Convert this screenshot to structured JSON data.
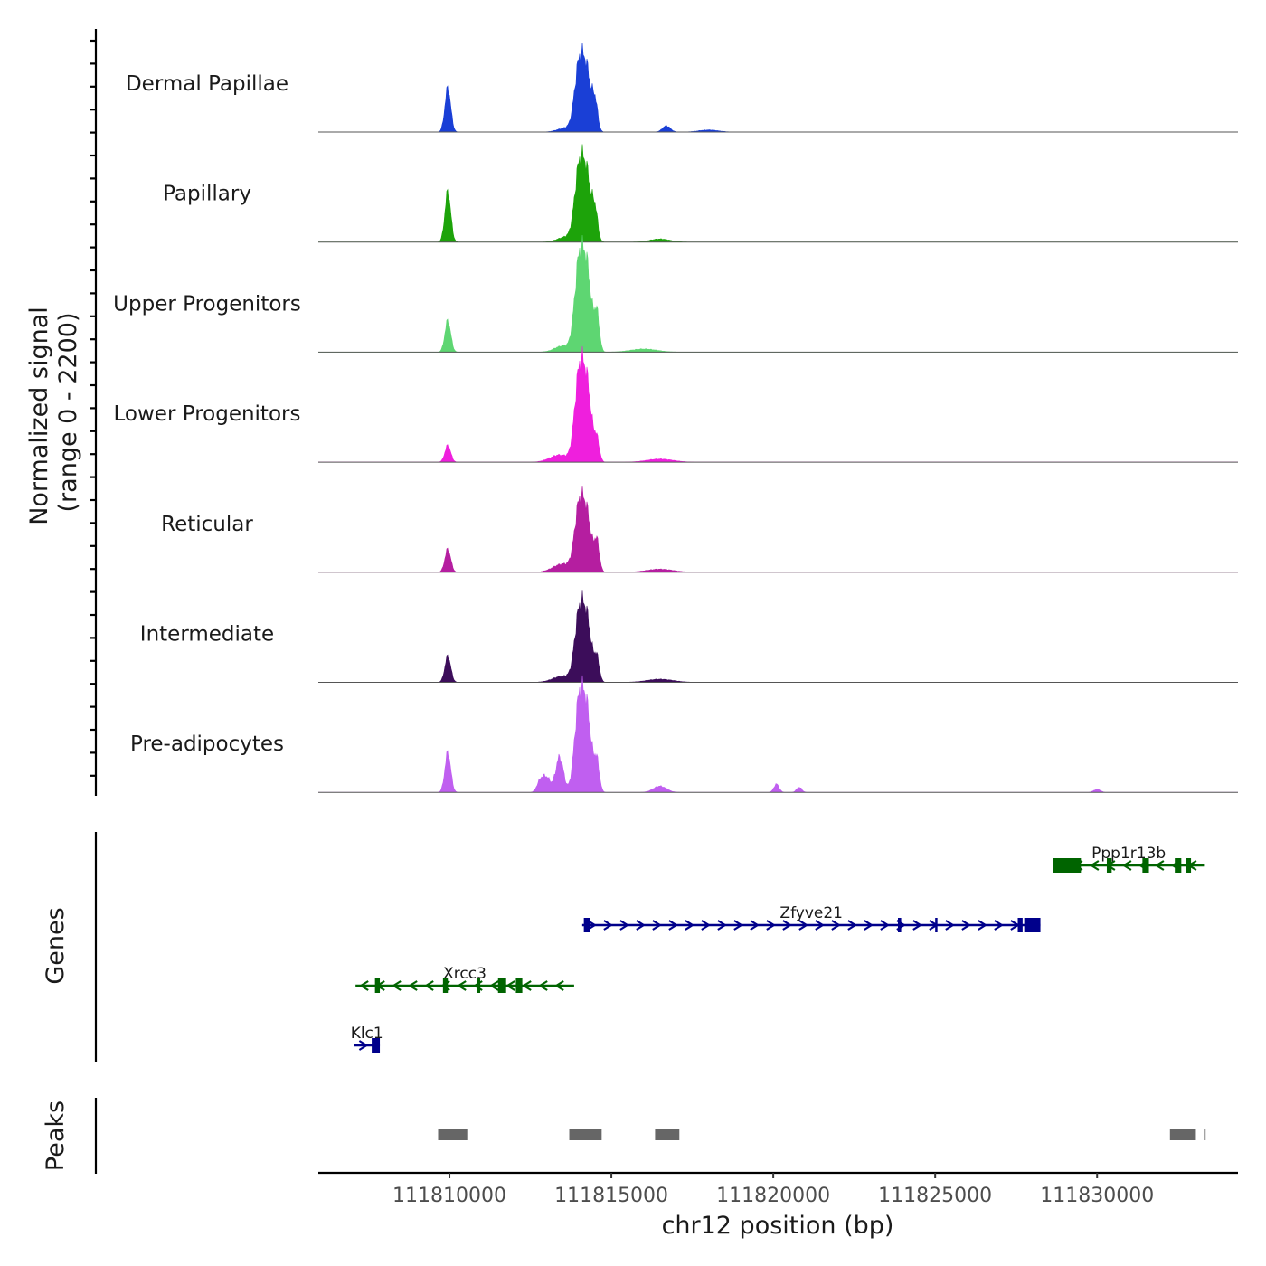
{
  "chart_data": {
    "type": "area",
    "chromosome": "chr12",
    "x_range": [
      111805950,
      111834350
    ],
    "xlabel": "chr12 position (bp)",
    "x_ticks": [
      "111810000",
      "111815000",
      "111820000",
      "111825000",
      "111830000"
    ],
    "x_tick_values": [
      111810000,
      111815000,
      111820000,
      111825000,
      111830000
    ],
    "signal_axis": {
      "label_line1": "Normalized signal",
      "label_line2": "(range 0 - 2200)",
      "ylim": [
        0,
        2200
      ]
    },
    "coverage_tracks": [
      {
        "name": "Dermal Papillae",
        "color": "#1a3fd6",
        "peaks": [
          [
            111809950,
            0.42,
            90
          ],
          [
            111814000,
            0.6,
            140
          ],
          [
            111814250,
            0.52,
            140
          ],
          [
            111814500,
            0.25,
            80
          ],
          [
            111816700,
            0.06,
            120
          ],
          [
            111813600,
            0.04,
            250
          ],
          [
            111818000,
            0.02,
            300
          ]
        ]
      },
      {
        "name": "Papillary",
        "color": "#1da30a",
        "peaks": [
          [
            111809950,
            0.48,
            90
          ],
          [
            111814000,
            0.65,
            140
          ],
          [
            111814250,
            0.58,
            140
          ],
          [
            111814500,
            0.26,
            80
          ],
          [
            111813600,
            0.05,
            250
          ],
          [
            111816500,
            0.03,
            300
          ]
        ]
      },
      {
        "name": "Upper Progenitors",
        "color": "#5ed672",
        "peaks": [
          [
            111809950,
            0.3,
            90
          ],
          [
            111814000,
            0.8,
            140
          ],
          [
            111814250,
            0.72,
            140
          ],
          [
            111814550,
            0.35,
            80
          ],
          [
            111813500,
            0.06,
            250
          ],
          [
            111816000,
            0.03,
            400
          ]
        ]
      },
      {
        "name": "Lower Progenitors",
        "color": "#ef1fdd",
        "peaks": [
          [
            111809950,
            0.16,
            90
          ],
          [
            111814000,
            0.78,
            140
          ],
          [
            111814250,
            0.68,
            140
          ],
          [
            111814550,
            0.2,
            80
          ],
          [
            111813400,
            0.07,
            300
          ],
          [
            111816500,
            0.03,
            400
          ]
        ]
      },
      {
        "name": "Reticular",
        "color": "#b51ea0",
        "peaks": [
          [
            111809950,
            0.22,
            90
          ],
          [
            111814000,
            0.58,
            140
          ],
          [
            111814250,
            0.5,
            140
          ],
          [
            111814550,
            0.28,
            80
          ],
          [
            111813500,
            0.08,
            300
          ],
          [
            111816500,
            0.03,
            400
          ]
        ]
      },
      {
        "name": "Intermediate",
        "color": "#3c0d5a",
        "peaks": [
          [
            111809950,
            0.25,
            90
          ],
          [
            111814000,
            0.6,
            140
          ],
          [
            111814250,
            0.55,
            140
          ],
          [
            111814550,
            0.22,
            80
          ],
          [
            111813500,
            0.06,
            300
          ],
          [
            111816500,
            0.03,
            400
          ]
        ]
      },
      {
        "name": "Pre-adipocytes",
        "color": "#c05ff0",
        "peaks": [
          [
            111809950,
            0.38,
            90
          ],
          [
            111814000,
            0.82,
            140
          ],
          [
            111814250,
            0.7,
            140
          ],
          [
            111814550,
            0.28,
            80
          ],
          [
            111813400,
            0.34,
            120
          ],
          [
            111813000,
            0.14,
            120
          ],
          [
            111812800,
            0.1,
            100
          ],
          [
            111816500,
            0.06,
            200
          ],
          [
            111820100,
            0.08,
            80
          ],
          [
            111820800,
            0.05,
            80
          ],
          [
            111830000,
            0.03,
            100
          ]
        ]
      }
    ],
    "genes_track": {
      "label": "Genes",
      "genes": [
        {
          "name": "Ppp1r13b",
          "strand": "-",
          "color": "#006400",
          "start": 111828650,
          "end": 111833300,
          "row": 0,
          "exons": [
            [
              111828650,
              111829500
            ],
            [
              111830300,
              111830450
            ],
            [
              111831400,
              111831600
            ],
            [
              111832400,
              111832600
            ],
            [
              111832750,
              111832900
            ]
          ]
        },
        {
          "name": "Zfyve21",
          "strand": "+",
          "color": "#00008b",
          "start": 111814100,
          "end": 111828250,
          "row": 1,
          "exons": [
            [
              111814150,
              111814350
            ],
            [
              111823850,
              111823950
            ],
            [
              111825000,
              111825050
            ],
            [
              111827550,
              111827700
            ],
            [
              111827750,
              111828250
            ]
          ]
        },
        {
          "name": "Xrcc3",
          "strand": "-",
          "color": "#006400",
          "start": 111807100,
          "end": 111813850,
          "row": 2,
          "exons": [
            [
              111807700,
              111807850
            ],
            [
              111809800,
              111809950
            ],
            [
              111810850,
              111810950
            ],
            [
              111811500,
              111811750
            ],
            [
              111812050,
              111812250
            ]
          ]
        },
        {
          "name": "Klc1",
          "strand": "+",
          "color": "#00008b",
          "start": 111807050,
          "end": 111807850,
          "row": 3,
          "exons": [
            [
              111807600,
              111807850
            ]
          ]
        }
      ]
    },
    "peaks_track": {
      "label": "Peaks",
      "color": "#666666",
      "regions": [
        [
          111809650,
          111810550
        ],
        [
          111813700,
          111814700
        ],
        [
          111816350,
          111817100
        ],
        [
          111832250,
          111833050
        ],
        [
          111833300,
          111833350
        ]
      ]
    }
  }
}
